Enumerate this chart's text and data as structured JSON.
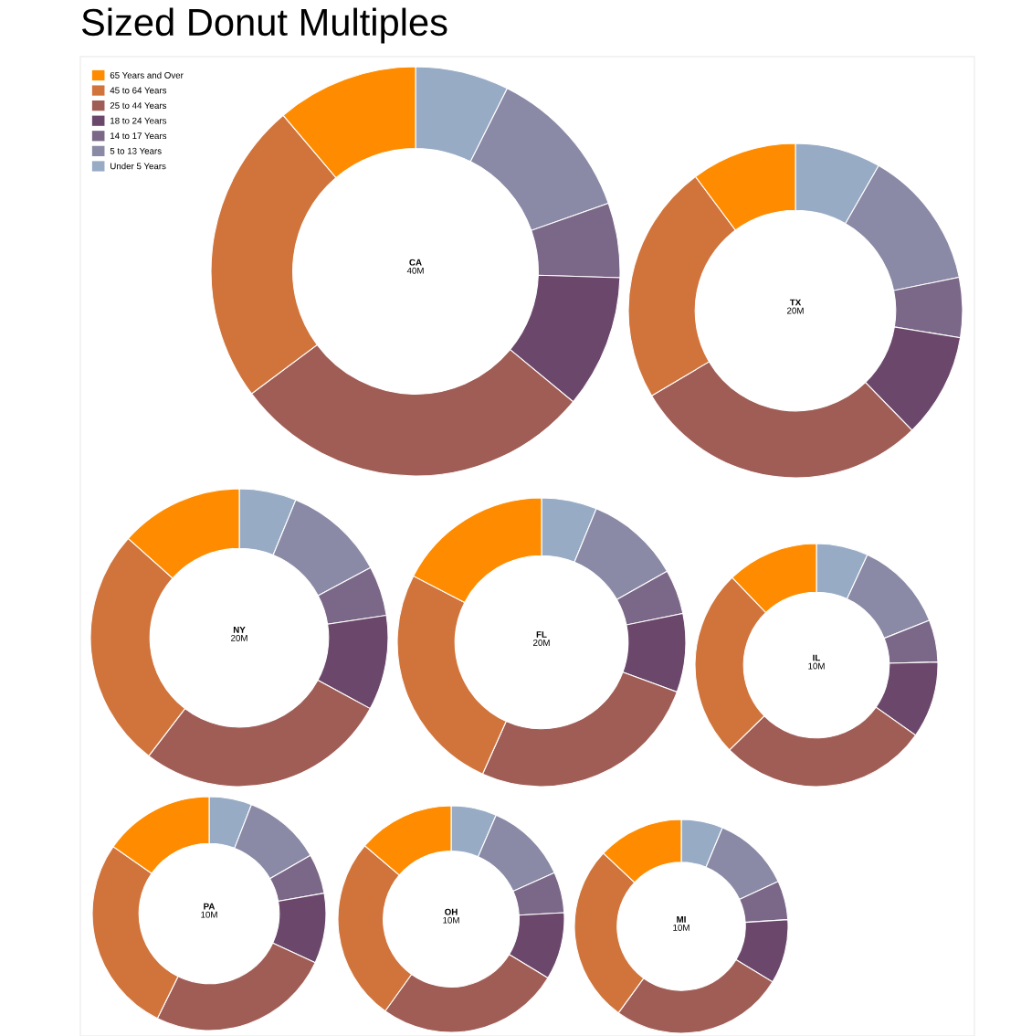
{
  "chart_data": [
    {
      "type": "other",
      "title": "Sized Donut Multiples"
    },
    {
      "type": "donut",
      "title": "CA",
      "subtitle": "40M",
      "legend": "top left",
      "categories": [
        "Under 5 Years",
        "5 to 13 Years",
        "14 to 17 Years",
        "18 to 24 Years",
        "25 to 44 Years",
        "45 to 64 Years",
        "65 Years and Over"
      ],
      "values": [
        7.4,
        12.2,
        5.9,
        10.5,
        28.8,
        24.0,
        11.2
      ],
      "colors": [
        "#98abc5",
        "#8a89a6",
        "#7b6888",
        "#6b486b",
        "#a05d56",
        "#d0743c",
        "#ff8c00"
      ]
    },
    {
      "type": "donut",
      "title": "TX",
      "subtitle": "20M",
      "categories": [
        null,
        null,
        null,
        null,
        null,
        null,
        null
      ],
      "values": [
        8.3,
        13.5,
        5.8,
        10.1,
        28.8,
        23.3,
        10.2
      ],
      "colors": [
        "#98abc5",
        "#8a89a6",
        "#7b6888",
        "#6b486b",
        "#a05d56",
        "#d0743c",
        "#ff8c00"
      ]
    },
    {
      "type": "donut",
      "title": "NY",
      "subtitle": "20M",
      "categories": [
        null,
        null,
        null,
        null,
        null,
        null,
        null
      ],
      "values": [
        6.2,
        11.0,
        5.4,
        10.3,
        27.5,
        26.2,
        13.4
      ],
      "colors": [
        "#98abc5",
        "#8a89a6",
        "#7b6888",
        "#6b486b",
        "#a05d56",
        "#d0743c",
        "#ff8c00"
      ]
    },
    {
      "type": "donut",
      "title": "FL",
      "subtitle": "20M",
      "categories": [
        null,
        null,
        null,
        null,
        null,
        null,
        null
      ],
      "values": [
        6.2,
        10.6,
        5.0,
        8.8,
        26.1,
        25.9,
        17.4
      ],
      "colors": [
        "#98abc5",
        "#8a89a6",
        "#7b6888",
        "#6b486b",
        "#a05d56",
        "#d0743c",
        "#ff8c00"
      ]
    },
    {
      "type": "donut",
      "title": "IL",
      "subtitle": "10M",
      "categories": [
        null,
        null,
        null,
        null,
        null,
        null,
        null
      ],
      "values": [
        6.9,
        12.1,
        5.6,
        10.2,
        27.9,
        25.1,
        12.2
      ],
      "colors": [
        "#98abc5",
        "#8a89a6",
        "#7b6888",
        "#6b486b",
        "#a05d56",
        "#d0743c",
        "#ff8c00"
      ]
    },
    {
      "type": "donut",
      "title": "PA",
      "subtitle": "10M",
      "categories": [
        null,
        null,
        null,
        null,
        null,
        null,
        null
      ],
      "values": [
        5.9,
        10.8,
        5.5,
        9.7,
        25.4,
        27.4,
        15.3
      ],
      "colors": [
        "#98abc5",
        "#8a89a6",
        "#7b6888",
        "#6b486b",
        "#a05d56",
        "#d0743c",
        "#ff8c00"
      ]
    },
    {
      "type": "donut",
      "title": "OH",
      "subtitle": "10M",
      "categories": [
        null,
        null,
        null,
        null,
        null,
        null,
        null
      ],
      "values": [
        6.5,
        11.8,
        5.8,
        9.6,
        26.2,
        26.3,
        13.8
      ],
      "colors": [
        "#98abc5",
        "#8a89a6",
        "#7b6888",
        "#6b486b",
        "#a05d56",
        "#d0743c",
        "#ff8c00"
      ]
    },
    {
      "type": "donut",
      "title": "MI",
      "subtitle": "10M",
      "categories": [
        null,
        null,
        null,
        null,
        null,
        null,
        null
      ],
      "values": [
        6.3,
        11.8,
        5.9,
        9.7,
        26.3,
        27.0,
        13.0
      ],
      "colors": [
        "#98abc5",
        "#8a89a6",
        "#7b6888",
        "#6b486b",
        "#a05d56",
        "#d0743c",
        "#ff8c00"
      ]
    }
  ]
}
